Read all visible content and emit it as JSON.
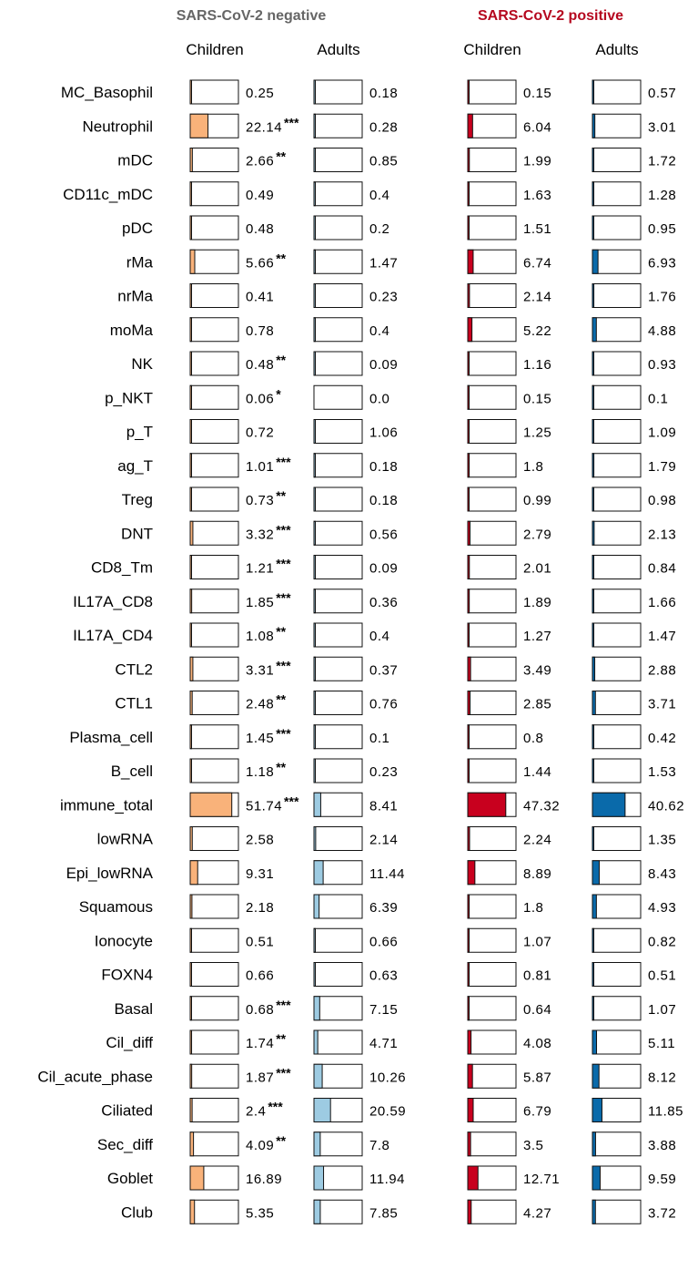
{
  "chart_data": {
    "type": "bar",
    "groups": [
      {
        "title": "SARS-CoV-2 negative",
        "color": "#666666"
      },
      {
        "title": "SARS-CoV-2 positive",
        "color": "#b5081f"
      }
    ],
    "series": [
      {
        "name": "Children",
        "group": 0,
        "color": "#f9b27a"
      },
      {
        "name": "Adults",
        "group": 0,
        "color": "#9dcbe2"
      },
      {
        "name": "Children",
        "group": 1,
        "color": "#c8001e"
      },
      {
        "name": "Adults",
        "group": 1,
        "color": "#0a6aaa"
      }
    ],
    "categories": [
      "MC_Basophil",
      "Neutrophil",
      "mDC",
      "CD11c_mDC",
      "pDC",
      "rMa",
      "nrMa",
      "moMa",
      "NK",
      "p_NKT",
      "p_T",
      "ag_T",
      "Treg",
      "DNT",
      "CD8_Tm",
      "IL17A_CD8",
      "IL17A_CD4",
      "CTL2",
      "CTL1",
      "Plasma_cell",
      "B_cell",
      "immune_total",
      "lowRNA",
      "Epi_lowRNA",
      "Squamous",
      "Ionocyte",
      "FOXN4",
      "Basal",
      "Cil_diff",
      "Cil_acute_phase",
      "Ciliated",
      "Sec_diff",
      "Goblet",
      "Club"
    ],
    "values": [
      [
        0.25,
        0.18,
        0.15,
        0.57
      ],
      [
        22.14,
        0.28,
        6.04,
        3.01
      ],
      [
        2.66,
        0.85,
        1.99,
        1.72
      ],
      [
        0.49,
        0.4,
        1.63,
        1.28
      ],
      [
        0.48,
        0.2,
        1.51,
        0.95
      ],
      [
        5.66,
        1.47,
        6.74,
        6.93
      ],
      [
        0.41,
        0.23,
        2.14,
        1.76
      ],
      [
        0.78,
        0.4,
        5.22,
        4.88
      ],
      [
        0.48,
        0.09,
        1.16,
        0.93
      ],
      [
        0.06,
        0.0,
        0.15,
        0.1
      ],
      [
        0.72,
        1.06,
        1.25,
        1.09
      ],
      [
        1.01,
        0.18,
        1.8,
        1.79
      ],
      [
        0.73,
        0.18,
        0.99,
        0.98
      ],
      [
        3.32,
        0.56,
        2.79,
        2.13
      ],
      [
        1.21,
        0.09,
        2.01,
        0.84
      ],
      [
        1.85,
        0.36,
        1.89,
        1.66
      ],
      [
        1.08,
        0.4,
        1.27,
        1.47
      ],
      [
        3.31,
        0.37,
        3.49,
        2.88
      ],
      [
        2.48,
        0.76,
        2.85,
        3.71
      ],
      [
        1.45,
        0.1,
        0.8,
        0.42
      ],
      [
        1.18,
        0.23,
        1.44,
        1.53
      ],
      [
        51.74,
        8.41,
        47.32,
        40.62
      ],
      [
        2.58,
        2.14,
        2.24,
        1.35
      ],
      [
        9.31,
        11.44,
        8.89,
        8.43
      ],
      [
        2.18,
        6.39,
        1.8,
        4.93
      ],
      [
        0.51,
        0.66,
        1.07,
        0.82
      ],
      [
        0.66,
        0.63,
        0.81,
        0.51
      ],
      [
        0.68,
        7.15,
        0.64,
        1.07
      ],
      [
        1.74,
        4.71,
        4.08,
        5.11
      ],
      [
        1.87,
        10.26,
        5.87,
        8.12
      ],
      [
        2.4,
        20.59,
        6.79,
        11.85
      ],
      [
        4.09,
        7.8,
        3.5,
        3.88
      ],
      [
        16.89,
        11.94,
        12.71,
        9.59
      ],
      [
        5.35,
        7.85,
        4.27,
        3.72
      ]
    ],
    "value_labels": [
      [
        "0.25",
        "0.18",
        "0.15",
        "0.57"
      ],
      [
        "22.14",
        "0.28",
        "6.04",
        "3.01"
      ],
      [
        "2.66",
        "0.85",
        "1.99",
        "1.72"
      ],
      [
        "0.49",
        "0.4",
        "1.63",
        "1.28"
      ],
      [
        "0.48",
        "0.2",
        "1.51",
        "0.95"
      ],
      [
        "5.66",
        "1.47",
        "6.74",
        "6.93"
      ],
      [
        "0.41",
        "0.23",
        "2.14",
        "1.76"
      ],
      [
        "0.78",
        "0.4",
        "5.22",
        "4.88"
      ],
      [
        "0.48",
        "0.09",
        "1.16",
        "0.93"
      ],
      [
        "0.06",
        "0.0",
        "0.15",
        "0.1"
      ],
      [
        "0.72",
        "1.06",
        "1.25",
        "1.09"
      ],
      [
        "1.01",
        "0.18",
        "1.8",
        "1.79"
      ],
      [
        "0.73",
        "0.18",
        "0.99",
        "0.98"
      ],
      [
        "3.32",
        "0.56",
        "2.79",
        "2.13"
      ],
      [
        "1.21",
        "0.09",
        "2.01",
        "0.84"
      ],
      [
        "1.85",
        "0.36",
        "1.89",
        "1.66"
      ],
      [
        "1.08",
        "0.4",
        "1.27",
        "1.47"
      ],
      [
        "3.31",
        "0.37",
        "3.49",
        "2.88"
      ],
      [
        "2.48",
        "0.76",
        "2.85",
        "3.71"
      ],
      [
        "1.45",
        "0.1",
        "0.8",
        "0.42"
      ],
      [
        "1.18",
        "0.23",
        "1.44",
        "1.53"
      ],
      [
        "51.74",
        "8.41",
        "47.32",
        "40.62"
      ],
      [
        "2.58",
        "2.14",
        "2.24",
        "1.35"
      ],
      [
        "9.31",
        "11.44",
        "8.89",
        "8.43"
      ],
      [
        "2.18",
        "6.39",
        "1.8",
        "4.93"
      ],
      [
        "0.51",
        "0.66",
        "1.07",
        "0.82"
      ],
      [
        "0.66",
        "0.63",
        "0.81",
        "0.51"
      ],
      [
        "0.68",
        "7.15",
        "0.64",
        "1.07"
      ],
      [
        "1.74",
        "4.71",
        "4.08",
        "5.11"
      ],
      [
        "1.87",
        "10.26",
        "5.87",
        "8.12"
      ],
      [
        "2.4",
        "20.59",
        "6.79",
        "11.85"
      ],
      [
        "4.09",
        "7.8",
        "3.5",
        "3.88"
      ],
      [
        "16.89",
        "11.94",
        "12.71",
        "9.59"
      ],
      [
        "5.35",
        "7.85",
        "4.27",
        "3.72"
      ]
    ],
    "significance": [
      "",
      "***",
      "**",
      "",
      "",
      "**",
      "",
      "",
      "**",
      "*",
      "",
      "***",
      "**",
      "***",
      "***",
      "***",
      "**",
      "***",
      "**",
      "***",
      "**",
      "***",
      "",
      "",
      "",
      "",
      "",
      "***",
      "**",
      "***",
      "***",
      "**",
      "",
      ""
    ],
    "bar_max": 60
  }
}
